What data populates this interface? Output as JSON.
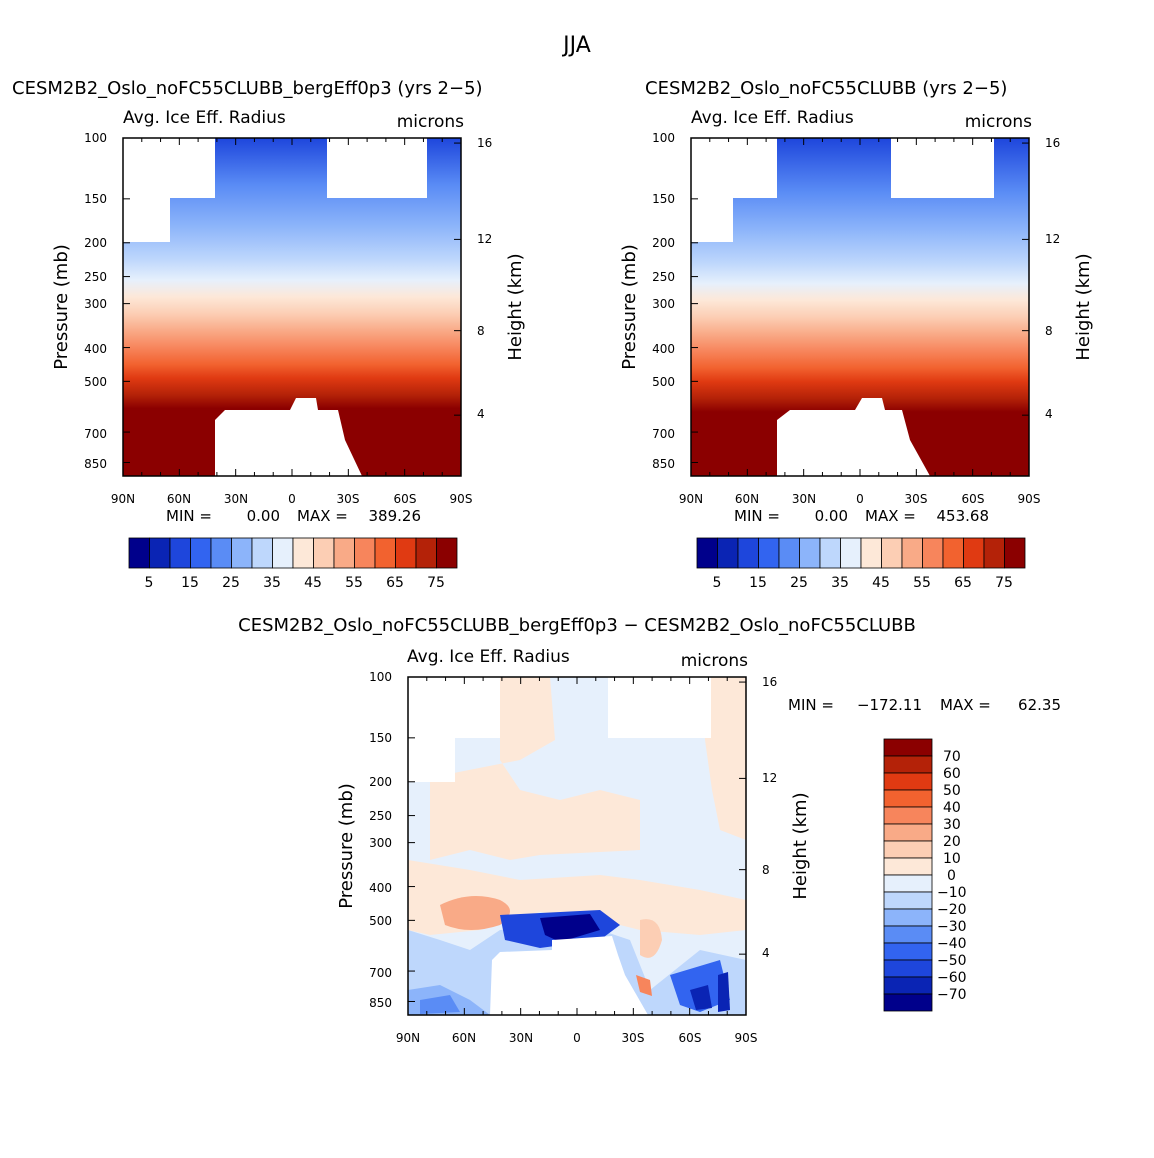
{
  "figure_title": "JJA",
  "chart_data": [
    {
      "type": "heatmap",
      "title": "CESM2B2_Oslo_noFC55CLUBB_bergEff0p3 (yrs 2−5)",
      "left_subtitle": "Avg. Ice Eff. Radius",
      "right_subtitle": "microns",
      "xlabel": "",
      "ylabel": "Pressure (mb)",
      "y2label": "Height (km)",
      "xticks": [
        "90N",
        "60N",
        "30N",
        "0",
        "30S",
        "60S",
        "90S"
      ],
      "yticks": [
        "100",
        "150",
        "200",
        "250",
        "300",
        "400",
        "500",
        "700",
        "850"
      ],
      "y2ticks": [
        "16",
        "12",
        "8",
        "4"
      ],
      "min_label": "MIN =",
      "min_value": "0.00",
      "max_label": "MAX =",
      "max_value": "389.26",
      "colorbar_ticks": [
        "5",
        "15",
        "25",
        "35",
        "45",
        "55",
        "65",
        "75"
      ]
    },
    {
      "type": "heatmap",
      "title": "CESM2B2_Oslo_noFC55CLUBB (yrs 2−5)",
      "left_subtitle": "Avg. Ice Eff. Radius",
      "right_subtitle": "microns",
      "xlabel": "",
      "ylabel": "Pressure (mb)",
      "y2label": "Height (km)",
      "xticks": [
        "90N",
        "60N",
        "30N",
        "0",
        "30S",
        "60S",
        "90S"
      ],
      "yticks": [
        "100",
        "150",
        "200",
        "250",
        "300",
        "400",
        "500",
        "700",
        "850"
      ],
      "y2ticks": [
        "16",
        "12",
        "8",
        "4"
      ],
      "min_label": "MIN =",
      "min_value": "0.00",
      "max_label": "MAX =",
      "max_value": "453.68",
      "colorbar_ticks": [
        "5",
        "15",
        "25",
        "35",
        "45",
        "55",
        "65",
        "75"
      ]
    },
    {
      "type": "heatmap",
      "title": "CESM2B2_Oslo_noFC55CLUBB_bergEff0p3 − CESM2B2_Oslo_noFC55CLUBB",
      "left_subtitle": "Avg. Ice Eff. Radius",
      "right_subtitle": "microns",
      "xlabel": "",
      "ylabel": "Pressure (mb)",
      "y2label": "Height (km)",
      "xticks": [
        "90N",
        "60N",
        "30N",
        "0",
        "30S",
        "60S",
        "90S"
      ],
      "yticks": [
        "100",
        "150",
        "200",
        "250",
        "300",
        "400",
        "500",
        "700",
        "850"
      ],
      "y2ticks": [
        "16",
        "12",
        "8",
        "4"
      ],
      "min_label": "MIN =",
      "min_value": "−172.11",
      "max_label": "MAX =",
      "max_value": "62.35",
      "colorbar_ticks": [
        "70",
        "60",
        "50",
        "40",
        "30",
        "20",
        "10",
        "0",
        "−10",
        "−20",
        "−30",
        "−40",
        "−50",
        "−60",
        "−70"
      ]
    }
  ],
  "palette_abs": [
    "#00008b",
    "#0a24b4",
    "#1e46dc",
    "#3264f0",
    "#5a8cf5",
    "#8cb4fa",
    "#bed7fc",
    "#e6f0fc",
    "#fde8d8",
    "#fcceb4",
    "#f9aa87",
    "#f7855c",
    "#f2622f",
    "#e03a12",
    "#b42208",
    "#8b0000"
  ],
  "palette_diff": [
    "#8b0000",
    "#b42208",
    "#e03a12",
    "#f2622f",
    "#f7855c",
    "#f9aa87",
    "#fcceb4",
    "#fde8d8",
    "#e6f0fc",
    "#bed7fc",
    "#8cb4fa",
    "#5a8cf5",
    "#3264f0",
    "#1e46dc",
    "#0a24b4",
    "#00008b"
  ]
}
